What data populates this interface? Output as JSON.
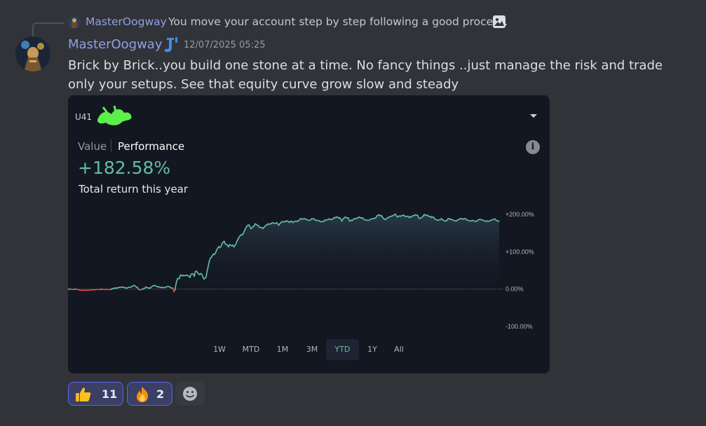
{
  "reply": {
    "author": "MasterOogway",
    "text": "You move your account step by step following a good process.",
    "attachment_icon": "image-icon"
  },
  "message": {
    "author": "MasterOogway",
    "timestamp": "12/07/2025 05:25",
    "text": "Brick by Brick..you build one stone at a time. No fancy things ..just manage the risk and trade only your setups. See that equity curve grow slow and steady"
  },
  "card": {
    "account_id": "U41",
    "tabs": [
      "Value",
      "Performance"
    ],
    "active_tab": "Performance",
    "return_value": "+182.58%",
    "return_label": "Total return this year",
    "periods": [
      "1W",
      "MTD",
      "1M",
      "3M",
      "YTD",
      "1Y",
      "All"
    ],
    "active_period": "YTD",
    "colors": {
      "positive": "#66bba7",
      "negative": "#e8493d",
      "background": "#131722"
    }
  },
  "chart_data": {
    "type": "line",
    "y_ticks": [
      "+200.00%",
      "+100.00%",
      "0.00%",
      "-100.00%"
    ],
    "ylim": [
      -100,
      200
    ],
    "grid": false,
    "series": [
      {
        "values": [
          0,
          0,
          0,
          0,
          -1,
          -1,
          0,
          0,
          0,
          -1,
          -2,
          -3,
          -3,
          -3,
          -3,
          -3,
          -3,
          -3,
          -3,
          -3,
          -3,
          -2,
          -2,
          -2,
          -2,
          -2,
          -1,
          -1,
          -1,
          -1,
          -1,
          0,
          0,
          -1,
          -1,
          -1,
          -1,
          -1,
          -1,
          -1,
          -1,
          1,
          2,
          2,
          3,
          3,
          3,
          4,
          5,
          5,
          6,
          5,
          5,
          4,
          3,
          3,
          4,
          5,
          5,
          6,
          7,
          9,
          10,
          8,
          5,
          4,
          -1,
          -2,
          -2,
          0,
          0,
          2,
          3,
          6,
          4,
          3,
          3,
          3,
          6,
          8,
          9,
          10,
          8,
          7,
          6,
          6,
          5,
          4,
          5,
          4,
          4,
          5,
          6,
          7,
          7,
          6,
          4,
          3,
          3,
          -7,
          -2,
          14,
          26,
          29,
          28,
          37,
          38,
          35,
          37,
          36,
          36,
          38,
          36,
          35,
          31,
          40,
          41,
          41,
          34,
          47,
          48,
          45,
          40,
          39,
          42,
          40,
          33,
          27,
          29,
          32,
          48,
          60,
          74,
          83,
          85,
          90,
          94,
          93,
          98,
          105,
          110,
          114,
          111,
          114,
          122,
          126,
          128,
          121,
          119,
          118,
          113,
          119,
          118,
          116,
          118,
          113,
          117,
          121,
          129,
          134,
          140,
          143,
          146,
          145,
          150,
          157,
          163,
          168,
          171,
          172,
          168,
          162,
          164,
          168,
          169,
          175,
          173,
          171,
          170,
          165,
          165,
          165,
          162,
          165,
          168,
          171,
          172,
          175,
          173,
          175,
          175,
          178,
          177,
          176,
          176,
          178,
          175,
          171,
          175,
          178,
          181,
          180,
          180,
          182,
          181,
          183,
          181,
          178,
          181,
          182,
          178,
          180,
          181,
          182,
          181,
          183,
          184,
          188,
          189,
          187,
          188,
          189,
          187,
          186,
          185,
          184,
          184,
          186,
          189,
          188,
          188,
          185,
          184,
          184,
          184,
          182,
          181,
          180,
          181,
          181,
          185,
          184,
          186,
          186,
          188,
          187,
          186,
          187,
          189,
          192,
          191,
          193,
          193,
          190,
          191,
          187,
          182,
          188,
          190,
          193,
          192,
          190,
          191,
          183,
          182,
          185,
          184,
          188,
          189,
          188,
          190,
          191,
          193,
          192,
          190,
          191,
          189,
          186,
          185,
          185,
          184,
          184,
          186,
          187,
          188,
          189,
          189,
          190,
          192,
          197,
          198,
          199,
          196,
          197,
          192,
          189,
          187,
          186,
          190,
          191,
          193,
          194,
          195,
          196,
          197,
          199,
          201,
          196,
          193,
          195,
          196,
          195,
          197,
          197,
          198,
          195,
          194,
          195,
          195,
          191,
          194,
          193,
          196,
          197,
          198,
          199,
          198,
          197,
          190,
          189,
          191,
          192,
          196,
          200,
          197,
          198,
          198,
          195,
          194,
          195,
          191,
          193,
          192,
          187,
          186,
          185,
          184,
          186,
          186,
          189,
          186,
          184,
          182,
          183,
          183,
          188,
          189,
          187,
          187,
          186,
          184,
          183,
          183,
          182,
          185,
          186,
          188,
          189,
          189,
          187,
          188,
          189,
          187,
          185,
          184,
          183,
          182,
          183,
          184,
          183,
          182,
          181,
          182,
          185,
          186,
          187,
          186,
          185,
          184,
          184,
          182,
          181,
          183,
          182,
          182,
          184,
          185,
          186,
          187,
          188,
          185,
          183,
          182,
          182
        ]
      }
    ]
  },
  "reactions": [
    {
      "emoji": "thumbs-up",
      "count": "11"
    },
    {
      "emoji": "fire",
      "count": "2"
    }
  ],
  "add_reaction_icon": "smiley-icon"
}
